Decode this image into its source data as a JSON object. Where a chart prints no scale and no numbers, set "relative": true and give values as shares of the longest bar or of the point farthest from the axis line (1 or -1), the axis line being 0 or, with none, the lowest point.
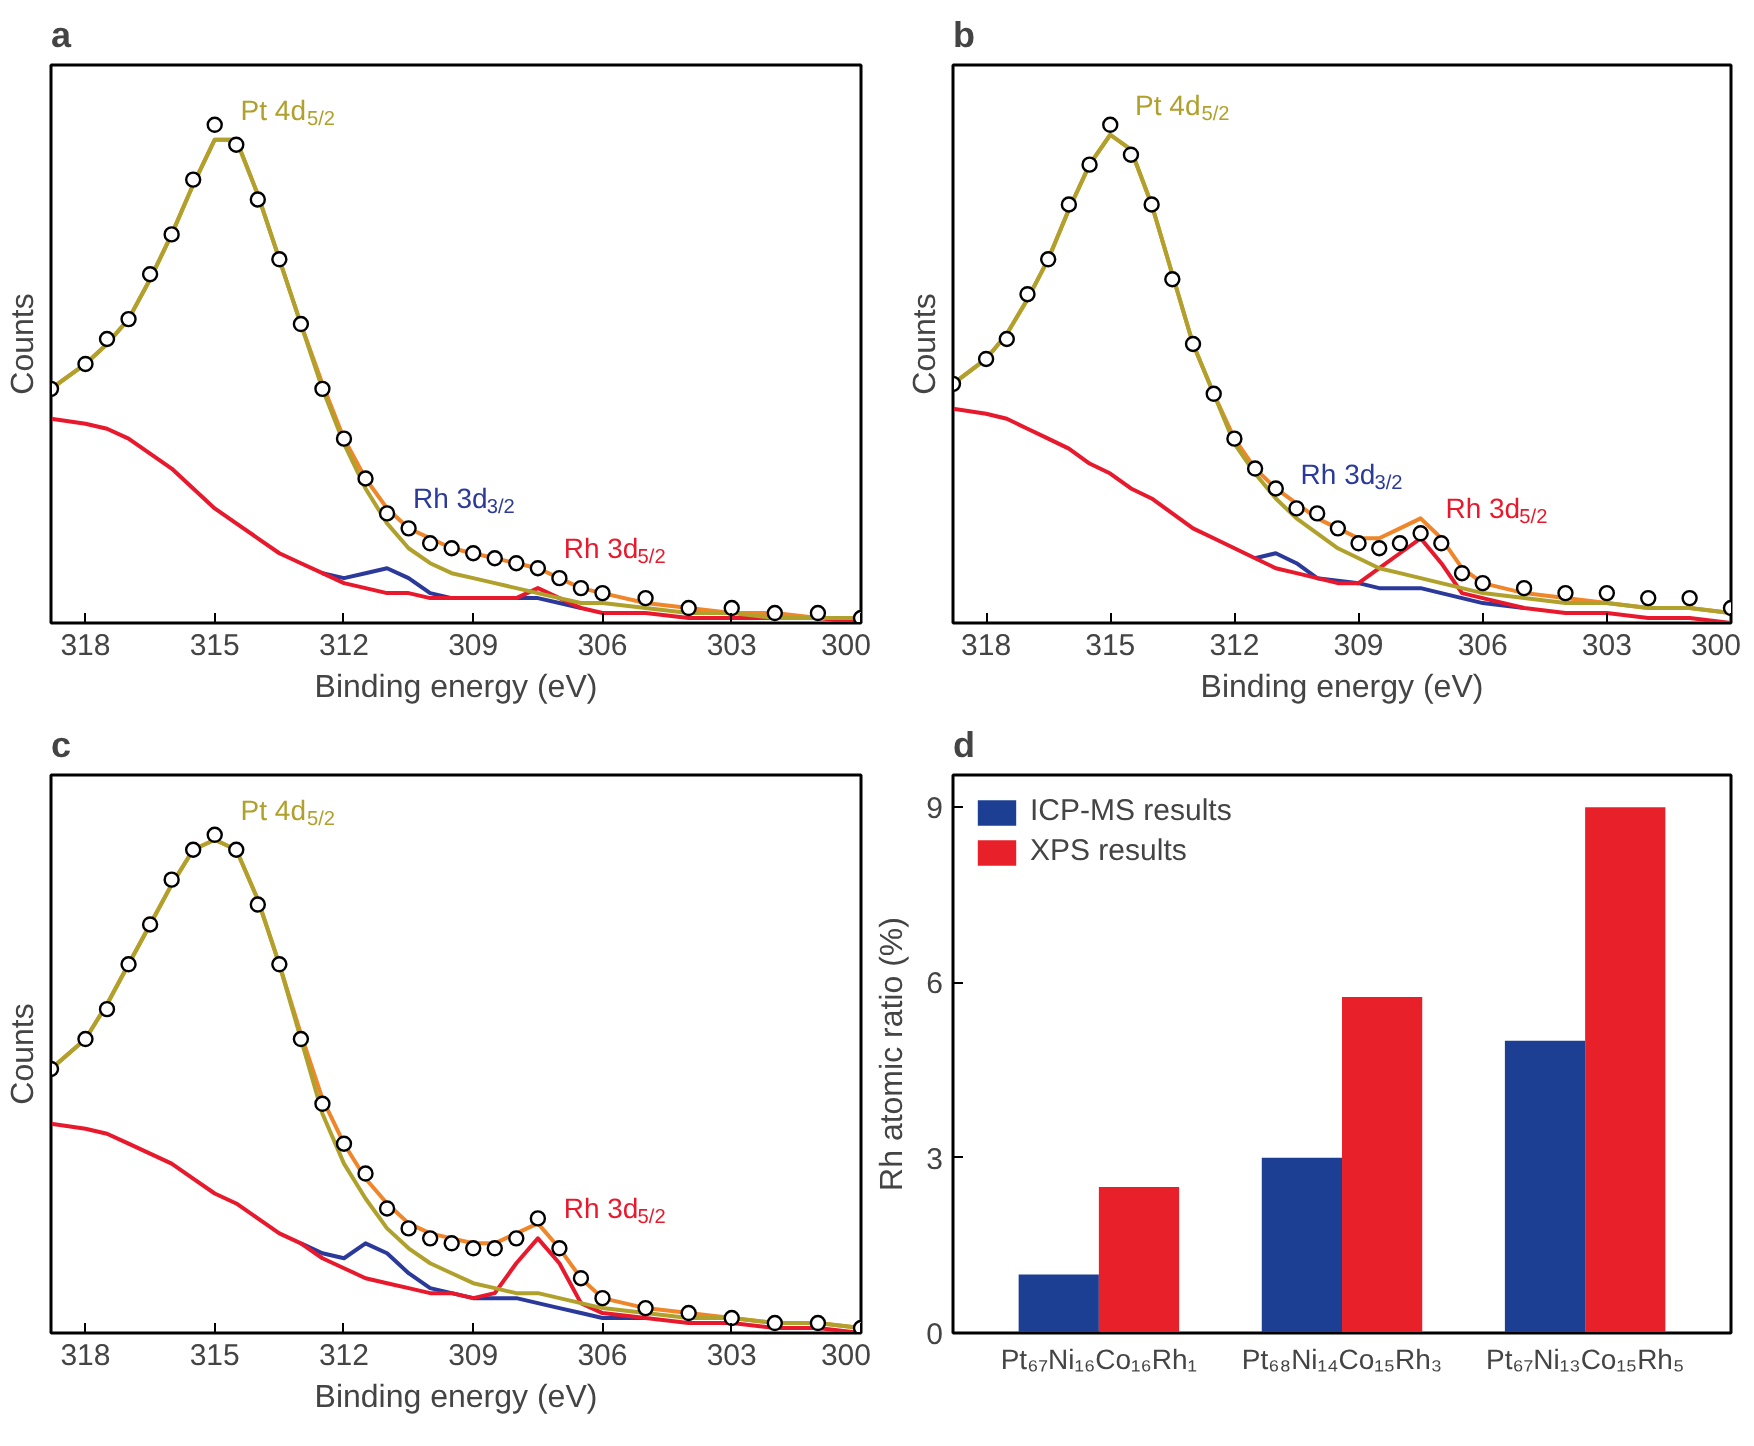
{
  "chart_data": [
    {
      "type": "line",
      "title": "a",
      "xlabel": "Binding energy (eV)",
      "ylabel": "Counts",
      "relative": true,
      "tick_labels": "x",
      "grid": false,
      "xlim": [
        318.8,
        300
      ],
      "xticks": [
        318,
        315,
        312,
        309,
        306,
        303,
        300
      ],
      "x": [
        318.8,
        318,
        317.5,
        317,
        316.5,
        316,
        315.5,
        315,
        314.5,
        314,
        313.5,
        313,
        312.5,
        312,
        311.5,
        311,
        310.5,
        310,
        309.5,
        309,
        308.5,
        308,
        307.5,
        307,
        306.5,
        306,
        305,
        304,
        303,
        302,
        301,
        300
      ],
      "series": [
        {
          "name": "Rh 3d$_{3/2}$",
          "color": "#2b3a9a",
          "values": [
            null,
            null,
            null,
            null,
            null,
            null,
            null,
            null,
            null,
            null,
            null,
            null,
            0.1,
            0.09,
            0.1,
            0.11,
            0.09,
            0.06,
            0.05,
            null,
            null,
            0.05,
            0.05,
            0.04,
            0.03,
            null,
            null,
            null,
            null,
            null,
            null,
            null
          ]
        },
        {
          "name": "Rh 3d$_{5/2}$",
          "color": "#e8192c",
          "values": [
            0.41,
            0.4,
            0.39,
            0.37,
            0.34,
            0.31,
            0.27,
            0.23,
            0.2,
            0.17,
            0.14,
            0.12,
            0.1,
            0.08,
            0.07,
            0.06,
            0.06,
            0.05,
            0.05,
            0.05,
            0.05,
            0.05,
            0.07,
            0.05,
            0.03,
            0.02,
            0.02,
            0.01,
            0.01,
            0.01,
            0.01,
            0
          ]
        },
        {
          "color": "#f0862a",
          "values": [
            0.47,
            0.52,
            0.56,
            0.61,
            0.69,
            0.78,
            0.88,
            0.97,
            0.97,
            0.86,
            0.73,
            0.6,
            0.48,
            0.37,
            0.29,
            0.23,
            0.19,
            0.17,
            0.15,
            0.14,
            0.13,
            0.12,
            0.11,
            0.09,
            0.07,
            0.06,
            0.04,
            0.03,
            0.02,
            0.02,
            0.01,
            0.01
          ]
        },
        {
          "name": "Pt 4d$_{5/2}$",
          "color": "#b0a12c",
          "values": [
            0.47,
            0.52,
            0.56,
            0.61,
            0.69,
            0.78,
            0.88,
            0.97,
            0.97,
            0.86,
            0.73,
            0.6,
            0.47,
            0.36,
            0.27,
            0.2,
            0.15,
            0.12,
            0.1,
            0.09,
            0.08,
            0.07,
            0.06,
            0.05,
            0.04,
            0.04,
            0.03,
            0.02,
            0.02,
            0.01,
            0.01,
            0.01
          ]
        },
        {
          "type": "scatter",
          "marker": "circle",
          "color": "#000000",
          "values": [
            0.47,
            0.52,
            0.57,
            0.61,
            0.7,
            0.78,
            0.89,
            1.0,
            0.96,
            0.85,
            0.73,
            0.6,
            0.47,
            0.37,
            0.29,
            0.22,
            0.19,
            0.16,
            0.15,
            0.14,
            0.13,
            0.12,
            0.11,
            0.09,
            0.07,
            0.06,
            0.05,
            0.03,
            0.03,
            0.02,
            0.02,
            0.01
          ]
        }
      ]
    },
    {
      "type": "line",
      "title": "b",
      "xlabel": "Binding energy (eV)",
      "ylabel": "Counts",
      "relative": true,
      "tick_labels": "x",
      "grid": false,
      "xlim": [
        318.8,
        300
      ],
      "xticks": [
        318,
        315,
        312,
        309,
        306,
        303,
        300
      ],
      "x": [
        318.8,
        318,
        317.5,
        317,
        316.5,
        316,
        315.5,
        315,
        314.5,
        314,
        313.5,
        313,
        312.5,
        312,
        311.5,
        311,
        310.5,
        310,
        309.5,
        309,
        308.5,
        308,
        307.5,
        307,
        306.5,
        306,
        305,
        304,
        303,
        302,
        301,
        300
      ],
      "series": [
        {
          "name": "Rh 3d$_{3/2}$",
          "color": "#2b3a9a",
          "values": [
            null,
            null,
            null,
            null,
            null,
            null,
            null,
            null,
            null,
            null,
            null,
            null,
            null,
            null,
            0.13,
            0.14,
            0.12,
            0.09,
            null,
            0.08,
            0.07,
            0.07,
            0.07,
            0.06,
            0.05,
            0.04,
            0.03,
            null,
            null,
            null,
            null,
            null
          ]
        },
        {
          "name": "Rh 3d$_{5/2}$",
          "color": "#e8192c",
          "values": [
            0.43,
            0.42,
            0.41,
            0.39,
            0.37,
            0.35,
            0.32,
            0.3,
            0.27,
            0.25,
            0.22,
            0.19,
            0.17,
            0.15,
            0.13,
            0.11,
            0.1,
            0.09,
            0.08,
            0.08,
            0.11,
            0.14,
            0.17,
            0.12,
            0.06,
            0.05,
            0.03,
            0.02,
            0.02,
            0.01,
            0.01,
            0
          ]
        },
        {
          "color": "#f0862a",
          "values": [
            0.48,
            0.53,
            0.58,
            0.65,
            0.73,
            0.83,
            0.92,
            0.98,
            0.95,
            0.84,
            0.7,
            0.56,
            0.46,
            0.37,
            0.31,
            0.27,
            0.24,
            0.21,
            0.19,
            0.17,
            0.17,
            0.19,
            0.21,
            0.17,
            0.11,
            0.08,
            0.06,
            0.05,
            0.04,
            0.03,
            0.03,
            0.02
          ]
        },
        {
          "name": "Pt 4d$_{5/2}$",
          "color": "#b0a12c",
          "values": [
            0.48,
            0.53,
            0.58,
            0.65,
            0.73,
            0.83,
            0.92,
            0.98,
            0.95,
            0.84,
            0.7,
            0.56,
            0.46,
            0.36,
            0.3,
            0.25,
            0.21,
            0.18,
            0.15,
            0.13,
            0.11,
            0.1,
            0.09,
            0.08,
            0.07,
            0.06,
            0.05,
            0.04,
            0.04,
            0.03,
            0.03,
            0.02
          ]
        },
        {
          "type": "scatter",
          "marker": "circle",
          "color": "#000000",
          "values": [
            0.48,
            0.53,
            0.57,
            0.66,
            0.73,
            0.84,
            0.92,
            1.0,
            0.94,
            0.84,
            0.69,
            0.56,
            0.46,
            0.37,
            0.31,
            0.27,
            0.23,
            0.22,
            0.19,
            0.16,
            0.15,
            0.16,
            0.18,
            0.16,
            0.1,
            0.08,
            0.07,
            0.06,
            0.06,
            0.05,
            0.05,
            0.03
          ]
        }
      ]
    },
    {
      "type": "line",
      "title": "c",
      "xlabel": "Binding energy (eV)",
      "ylabel": "Counts",
      "relative": true,
      "tick_labels": "x",
      "grid": false,
      "xlim": [
        318.8,
        300
      ],
      "xticks": [
        318,
        315,
        312,
        309,
        306,
        303,
        300
      ],
      "x": [
        318.8,
        318,
        317.5,
        317,
        316.5,
        316,
        315.5,
        315,
        314.5,
        314,
        313.5,
        313,
        312.5,
        312,
        311.5,
        311,
        310.5,
        310,
        309.5,
        309,
        308.5,
        308,
        307.5,
        307,
        306.5,
        306,
        305,
        304,
        303,
        302,
        301,
        300
      ],
      "series": [
        {
          "color": "#2b3a9a",
          "values": [
            null,
            null,
            null,
            null,
            null,
            null,
            null,
            null,
            null,
            null,
            null,
            0.18,
            0.16,
            0.15,
            0.18,
            0.16,
            0.12,
            0.09,
            0.08,
            0.07,
            0.07,
            0.07,
            0.06,
            0.05,
            0.04,
            0.03,
            0.03,
            null,
            null,
            null,
            null,
            null
          ]
        },
        {
          "name": "Rh 3d$_{5/2}$",
          "color": "#e8192c",
          "values": [
            0.42,
            0.41,
            0.4,
            0.38,
            0.36,
            0.34,
            0.31,
            0.28,
            0.26,
            0.23,
            0.2,
            0.18,
            0.15,
            0.13,
            0.11,
            0.1,
            0.09,
            0.08,
            0.08,
            0.07,
            0.08,
            0.14,
            0.19,
            0.14,
            0.06,
            0.04,
            0.03,
            0.02,
            0.02,
            0.01,
            0.01,
            0
          ]
        },
        {
          "color": "#f0862a",
          "values": [
            0.53,
            0.59,
            0.66,
            0.74,
            0.82,
            0.9,
            0.97,
            0.99,
            0.97,
            0.87,
            0.74,
            0.6,
            0.47,
            0.38,
            0.31,
            0.26,
            0.22,
            0.2,
            0.19,
            0.18,
            0.18,
            0.2,
            0.22,
            0.17,
            0.11,
            0.07,
            0.05,
            0.04,
            0.03,
            0.02,
            0.02,
            0.01
          ]
        },
        {
          "name": "Pt 4d$_{5/2}$",
          "color": "#b0a12c",
          "values": [
            0.53,
            0.59,
            0.66,
            0.74,
            0.82,
            0.9,
            0.97,
            0.99,
            0.97,
            0.87,
            0.74,
            0.59,
            0.44,
            0.34,
            0.27,
            0.21,
            0.17,
            0.14,
            0.12,
            0.1,
            0.09,
            0.08,
            0.08,
            0.07,
            0.06,
            0.05,
            0.04,
            0.03,
            0.03,
            0.02,
            0.02,
            0.01
          ]
        },
        {
          "type": "scatter",
          "marker": "circle",
          "color": "#000000",
          "values": [
            0.53,
            0.59,
            0.65,
            0.74,
            0.82,
            0.91,
            0.97,
            1.0,
            0.97,
            0.86,
            0.74,
            0.59,
            0.46,
            0.38,
            0.32,
            0.25,
            0.21,
            0.19,
            0.18,
            0.17,
            0.17,
            0.19,
            0.23,
            0.17,
            0.11,
            0.07,
            0.05,
            0.04,
            0.03,
            0.02,
            0.02,
            0.01
          ]
        }
      ]
    },
    {
      "type": "bar",
      "title": "d",
      "ylabel": "Rh atomic ratio (%)",
      "ylim": [
        0,
        9.55
      ],
      "yticks": [
        0,
        3,
        6,
        9
      ],
      "grid": false,
      "legend": "top left",
      "categories": [
        "Pt₆₇Ni₁₆Co₁₆Rh₁",
        "Pt₆₈Ni₁₄Co₁₅Rh₃",
        "Pt₆₇Ni₁₃Co₁₅Rh₅"
      ],
      "series": [
        {
          "name": "ICP-MS results",
          "color": "#1c3f94",
          "values": [
            1,
            3,
            5
          ]
        },
        {
          "name": "XPS results",
          "color": "#e8202a",
          "values": [
            2.5,
            5.75,
            9
          ]
        }
      ]
    }
  ]
}
